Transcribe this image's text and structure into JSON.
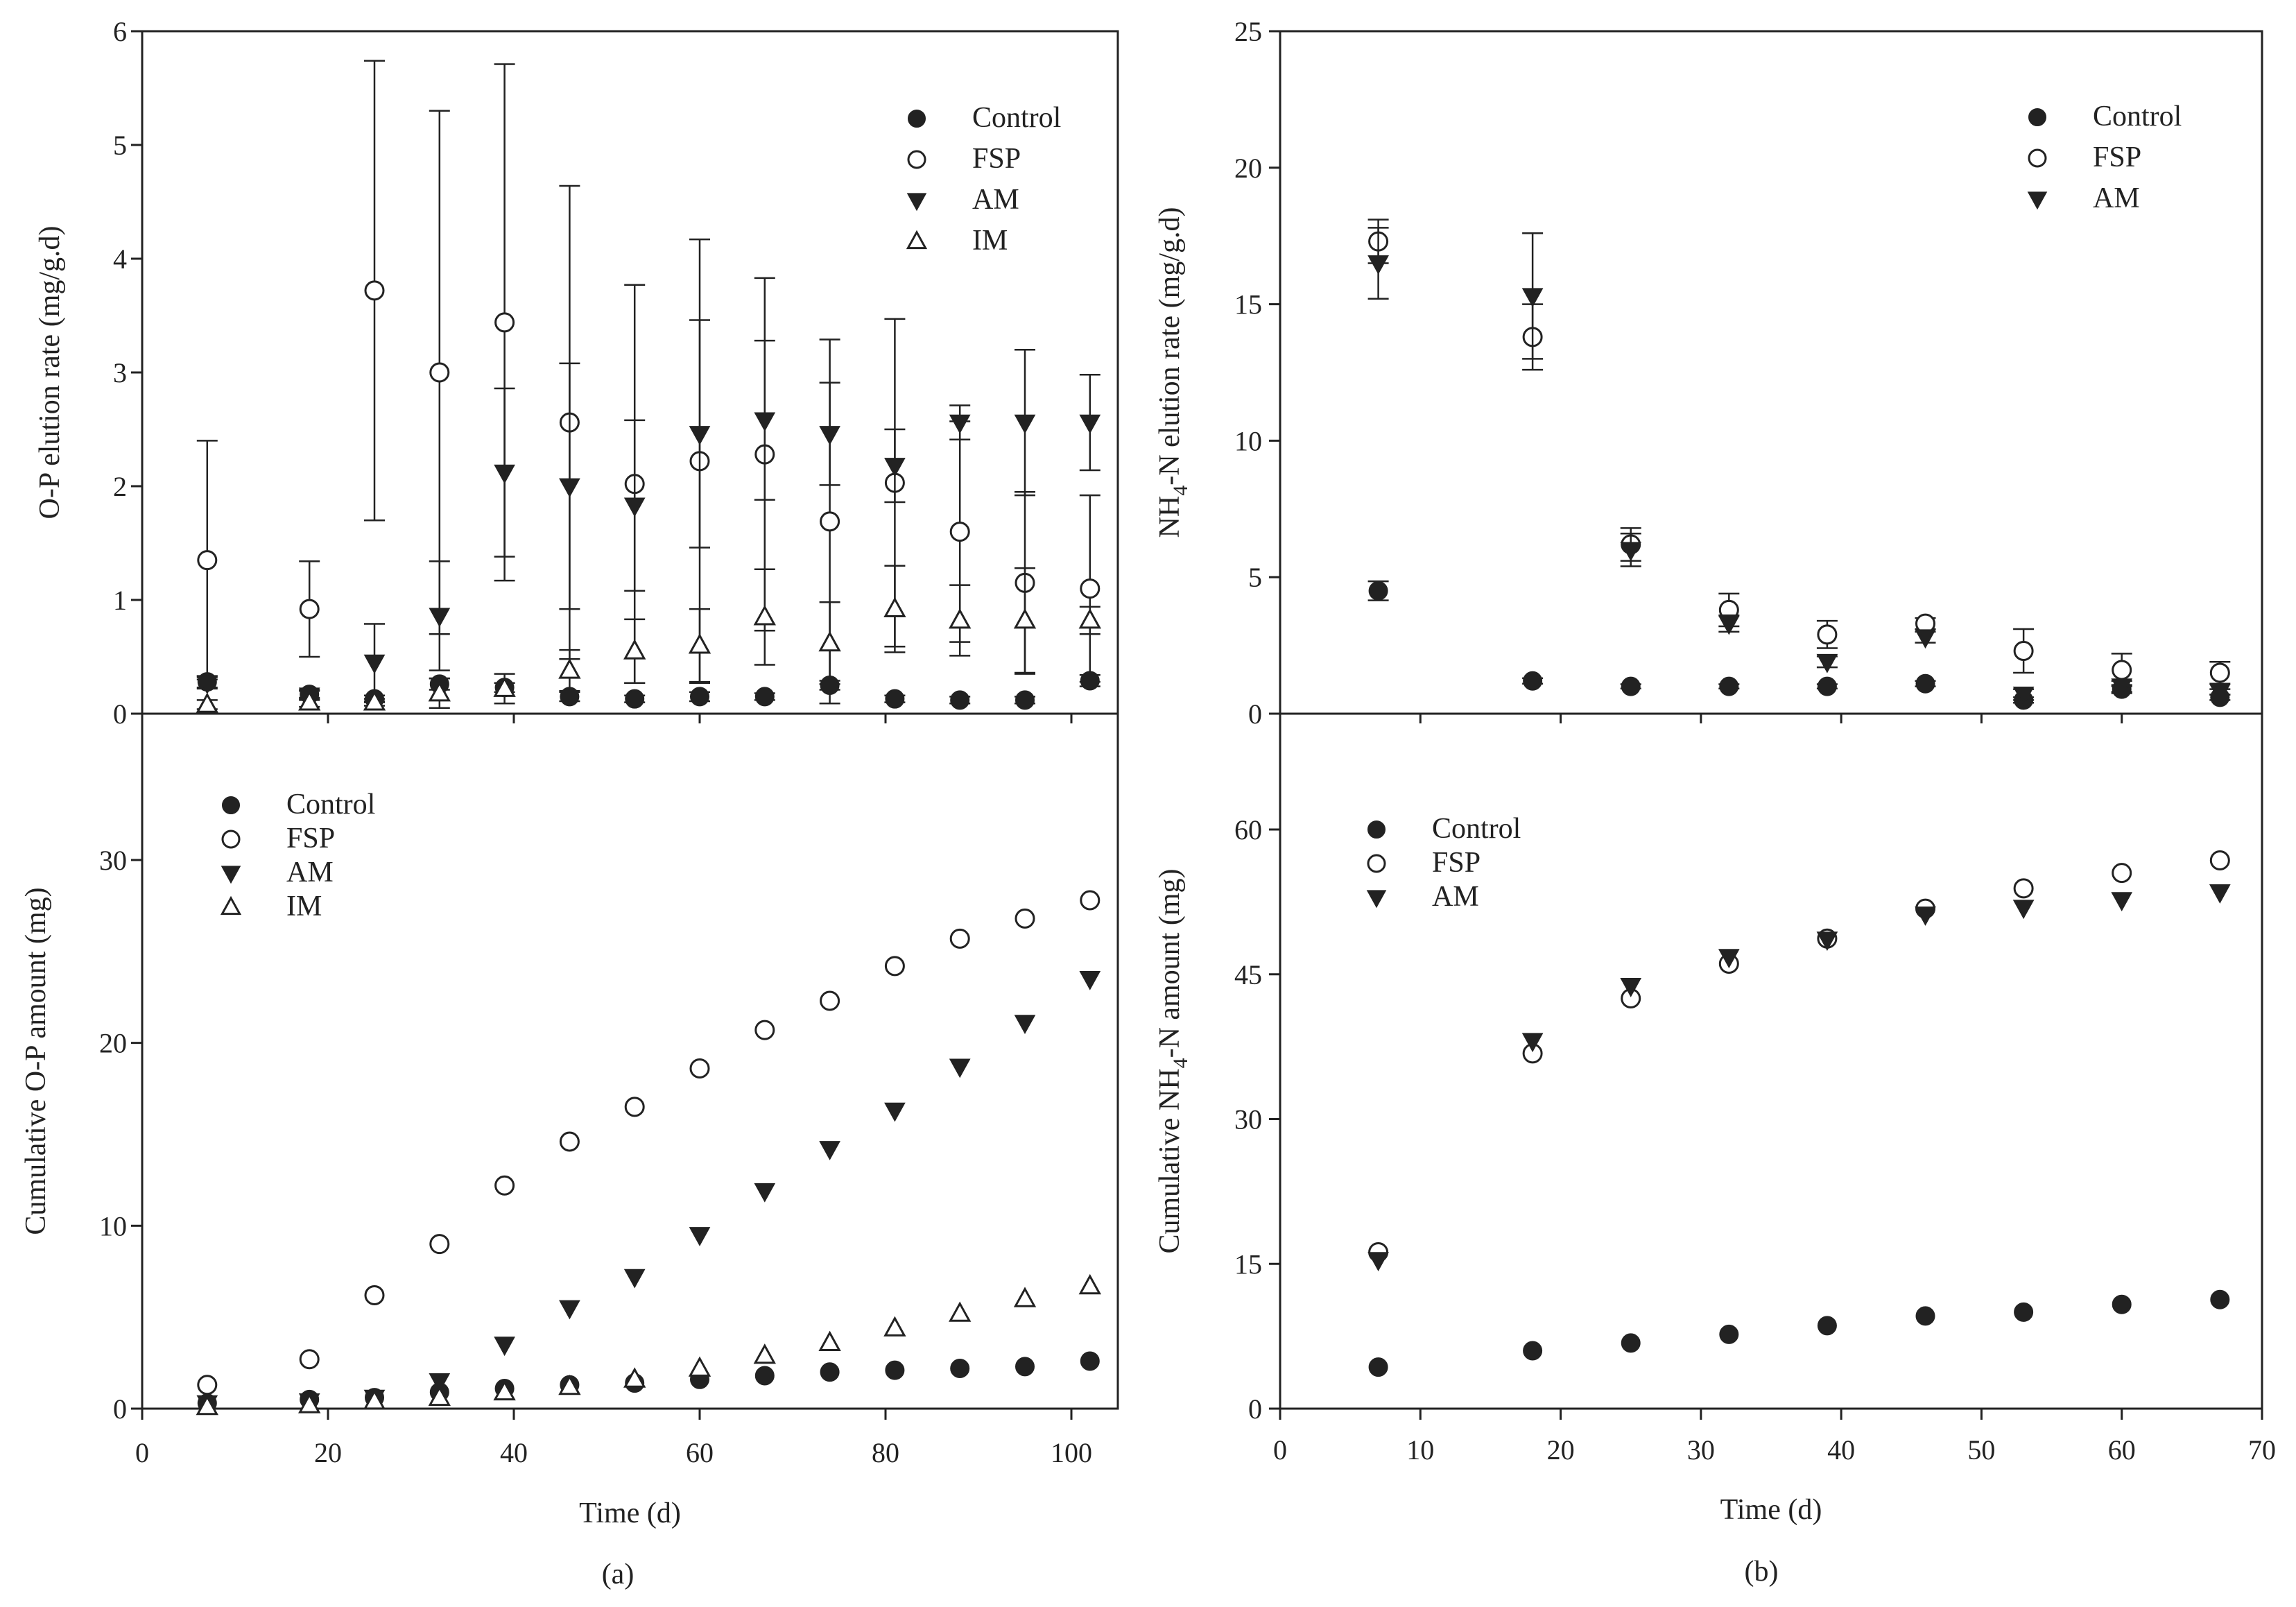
{
  "colors": {
    "ink": "#222222",
    "background": "#ffffff"
  },
  "chart_data": [
    {
      "id": "a-top",
      "type": "scatter",
      "xlim": [
        0,
        105
      ],
      "ylim": [
        0,
        6
      ],
      "xticks": [],
      "yticks": [
        0,
        1,
        2,
        3,
        4,
        5,
        6
      ],
      "xlabel": "",
      "ylabel": "O-P elution rate (mg/g.d)",
      "legend": "top-right",
      "series": [
        {
          "name": "Control",
          "marker": "filled-circle",
          "x": [
            7,
            18,
            25,
            32,
            39,
            46,
            53,
            60,
            67,
            74,
            81,
            88,
            95,
            102
          ],
          "y": [
            0.28,
            0.17,
            0.13,
            0.26,
            0.23,
            0.15,
            0.13,
            0.15,
            0.15,
            0.25,
            0.13,
            0.12,
            0.12,
            0.29
          ],
          "err": [
            0.05,
            0.04,
            0.03,
            0.05,
            0.04,
            0.04,
            0.03,
            0.04,
            0.03,
            0.04,
            0.03,
            0.03,
            0.03,
            0.05
          ]
        },
        {
          "name": "FSP",
          "marker": "open-circle",
          "x": [
            7,
            18,
            25,
            32,
            39,
            46,
            53,
            60,
            67,
            74,
            81,
            88,
            95,
            102
          ],
          "y": [
            1.35,
            0.92,
            3.72,
            3.0,
            3.44,
            2.56,
            2.02,
            2.22,
            2.28,
            1.69,
            2.03,
            1.6,
            1.15,
            1.1
          ],
          "err": [
            1.05,
            0.42,
            2.02,
            2.3,
            2.27,
            2.08,
            1.75,
            1.95,
            1.55,
            1.6,
            1.44,
            0.97,
            0.8,
            0.82
          ]
        },
        {
          "name": "AM",
          "marker": "filled-down-triangle",
          "x": [
            7,
            18,
            25,
            32,
            39,
            46,
            53,
            60,
            67,
            74,
            81,
            88,
            95,
            102
          ],
          "y": [
            0.27,
            0.16,
            0.45,
            0.86,
            2.12,
            2.0,
            1.83,
            2.46,
            2.58,
            2.46,
            2.18,
            2.56,
            2.56,
            2.56
          ],
          "err": [
            0.05,
            0.04,
            0.34,
            0.48,
            0.74,
            1.08,
            0.75,
            1.0,
            0.7,
            0.45,
            0.32,
            0.15,
            0.64,
            0.42
          ]
        },
        {
          "name": "IM",
          "marker": "open-up-triangle",
          "x": [
            7,
            18,
            25,
            32,
            39,
            46,
            53,
            60,
            67,
            74,
            81,
            88,
            95,
            102
          ],
          "y": [
            0.08,
            0.1,
            0.1,
            0.18,
            0.22,
            0.38,
            0.55,
            0.6,
            0.85,
            0.62,
            0.92,
            0.82,
            0.82,
            0.82
          ],
          "err": [
            0.04,
            0.04,
            0.03,
            0.13,
            0.13,
            0.18,
            0.28,
            0.32,
            0.42,
            0.36,
            0.38,
            0.31,
            0.46,
            0.12
          ]
        }
      ]
    },
    {
      "id": "a-bottom",
      "type": "scatter",
      "xlim": [
        0,
        105
      ],
      "ylim": [
        0,
        38
      ],
      "xticks": [
        0,
        20,
        40,
        60,
        80,
        100
      ],
      "yticks": [
        0,
        10,
        20,
        30
      ],
      "xlabel": "Time (d)",
      "ylabel": "Cumulative O-P amount (mg)",
      "legend": "top-left",
      "series": [
        {
          "name": "Control",
          "marker": "filled-circle",
          "x": [
            7,
            18,
            25,
            32,
            39,
            46,
            53,
            60,
            67,
            74,
            81,
            88,
            95,
            102
          ],
          "y": [
            0.3,
            0.5,
            0.6,
            0.9,
            1.1,
            1.3,
            1.4,
            1.6,
            1.8,
            2.0,
            2.1,
            2.2,
            2.3,
            2.6
          ]
        },
        {
          "name": "FSP",
          "marker": "open-circle",
          "x": [
            7,
            18,
            25,
            32,
            39,
            46,
            53,
            60,
            67,
            74,
            81,
            88,
            95,
            102
          ],
          "y": [
            1.3,
            2.7,
            6.2,
            9.0,
            12.2,
            14.6,
            16.5,
            18.6,
            20.7,
            22.3,
            24.2,
            25.7,
            26.8,
            27.8
          ]
        },
        {
          "name": "AM",
          "marker": "filled-down-triangle",
          "x": [
            7,
            18,
            25,
            32,
            39,
            46,
            53,
            60,
            67,
            74,
            81,
            88,
            95,
            102
          ],
          "y": [
            0.3,
            0.4,
            0.6,
            1.5,
            3.5,
            5.5,
            7.2,
            9.5,
            11.9,
            14.2,
            16.3,
            18.7,
            21.1,
            23.5
          ]
        },
        {
          "name": "IM",
          "marker": "open-up-triangle",
          "x": [
            7,
            18,
            25,
            32,
            39,
            46,
            53,
            60,
            67,
            74,
            81,
            88,
            95,
            102
          ],
          "y": [
            0.1,
            0.2,
            0.4,
            0.6,
            0.9,
            1.2,
            1.6,
            2.2,
            2.9,
            3.6,
            4.4,
            5.2,
            6.0,
            6.7
          ]
        }
      ]
    },
    {
      "id": "b-top",
      "type": "scatter",
      "xlim": [
        0,
        70
      ],
      "ylim": [
        0,
        25
      ],
      "xticks": [],
      "yticks": [
        0,
        5,
        10,
        15,
        20,
        25
      ],
      "xlabel": "",
      "ylabel": "NH4-N elution rate (mg/g.d)",
      "ylabel_parts": [
        "NH",
        "4",
        "-N elution rate (mg/g.d)"
      ],
      "legend": "top-right",
      "series": [
        {
          "name": "Control",
          "marker": "filled-circle",
          "x": [
            7,
            18,
            25,
            32,
            39,
            46,
            53,
            60,
            67
          ],
          "y": [
            4.5,
            1.2,
            1.0,
            1.0,
            1.0,
            1.1,
            0.5,
            0.9,
            0.6
          ],
          "err": [
            0.35,
            0.1,
            0.08,
            0.08,
            0.08,
            0.1,
            0.1,
            0.15,
            0.1
          ]
        },
        {
          "name": "FSP",
          "marker": "open-circle",
          "x": [
            7,
            18,
            25,
            32,
            39,
            46,
            53,
            60,
            67
          ],
          "y": [
            17.3,
            13.8,
            6.2,
            3.8,
            2.9,
            3.3,
            2.3,
            1.6,
            1.5
          ],
          "err": [
            0.8,
            1.2,
            0.6,
            0.6,
            0.5,
            0.2,
            0.8,
            0.6,
            0.4
          ]
        },
        {
          "name": "AM",
          "marker": "filled-down-triangle",
          "x": [
            7,
            18,
            25,
            32,
            39,
            46,
            53,
            60,
            67
          ],
          "y": [
            16.5,
            15.3,
            6.0,
            3.3,
            1.9,
            2.8,
            0.7,
            1.0,
            0.8
          ],
          "err": [
            1.3,
            2.3,
            0.6,
            0.3,
            0.2,
            0.2,
            0.2,
            0.2,
            0.1
          ]
        }
      ]
    },
    {
      "id": "b-bottom",
      "type": "scatter",
      "xlim": [
        0,
        70
      ],
      "ylim": [
        0,
        72
      ],
      "xticks": [
        0,
        10,
        20,
        30,
        40,
        50,
        60,
        70
      ],
      "yticks": [
        0,
        15,
        30,
        45,
        60
      ],
      "xlabel": "Time (d)",
      "ylabel": "Cumulative NH4-N amount (mg)",
      "ylabel_parts": [
        "Cumulative NH",
        "4",
        "-N amount (mg)"
      ],
      "legend": "top-left",
      "series": [
        {
          "name": "Control",
          "marker": "filled-circle",
          "x": [
            7,
            18,
            25,
            32,
            39,
            46,
            53,
            60,
            67
          ],
          "y": [
            4.3,
            6.0,
            6.8,
            7.7,
            8.6,
            9.6,
            10.0,
            10.8,
            11.3
          ]
        },
        {
          "name": "FSP",
          "marker": "open-circle",
          "x": [
            7,
            18,
            25,
            32,
            39,
            46,
            53,
            60,
            67
          ],
          "y": [
            16.2,
            36.8,
            42.5,
            46.1,
            48.7,
            51.8,
            53.9,
            55.5,
            56.8
          ]
        },
        {
          "name": "AM",
          "marker": "filled-down-triangle",
          "x": [
            7,
            18,
            25,
            32,
            39,
            46,
            53,
            60,
            67
          ],
          "y": [
            15.4,
            38.1,
            43.8,
            46.8,
            48.6,
            51.2,
            51.9,
            52.7,
            53.5
          ]
        }
      ]
    }
  ],
  "captions": {
    "a": "(a)",
    "b": "(b)"
  }
}
